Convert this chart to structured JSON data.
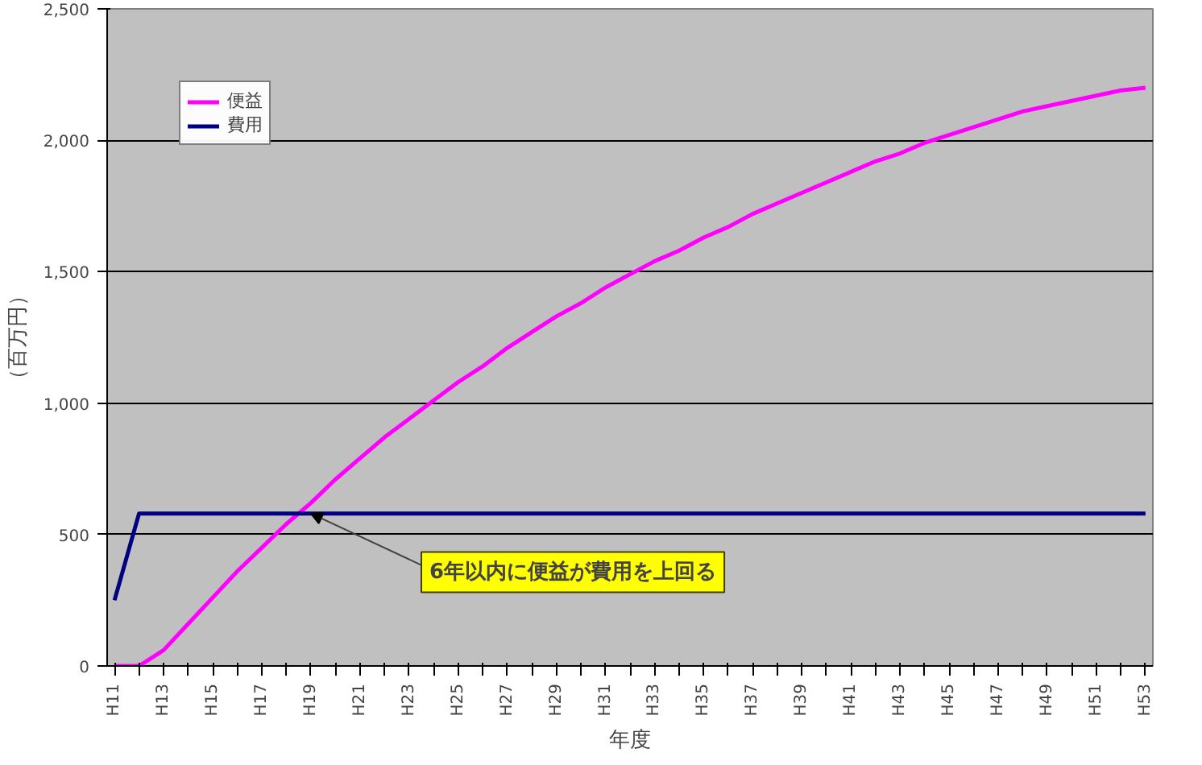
{
  "chart_data": {
    "type": "line",
    "xlabel": "年度",
    "ylabel": "（百万円）",
    "categories": [
      "H11",
      null,
      "H13",
      null,
      "H15",
      null,
      "H17",
      null,
      "H19",
      null,
      "H21",
      null,
      "H23",
      null,
      "H25",
      null,
      "H27",
      null,
      "H29",
      null,
      "H31",
      null,
      "H33",
      null,
      "H35",
      null,
      "H37",
      null,
      "H39",
      null,
      "H41",
      null,
      "H43",
      null,
      "H45",
      null,
      "H47",
      null,
      "H49",
      null,
      "H51",
      null,
      "H53"
    ],
    "series": [
      {
        "name": "便益",
        "color": "#ff00ff",
        "values": [
          0,
          0,
          60,
          160,
          260,
          360,
          450,
          540,
          620,
          710,
          790,
          870,
          940,
          1010,
          1080,
          1140,
          1210,
          1270,
          1330,
          1380,
          1440,
          1490,
          1540,
          1580,
          1630,
          1670,
          1720,
          1760,
          1800,
          1840,
          1880,
          1920,
          1950,
          1990,
          2020,
          2050,
          2080,
          2110,
          2130,
          2150,
          2170,
          2190,
          2200
        ]
      },
      {
        "name": "費用",
        "color": "#000080",
        "values": [
          250,
          580,
          580,
          580,
          580,
          580,
          580,
          580,
          580,
          580,
          580,
          580,
          580,
          580,
          580,
          580,
          580,
          580,
          580,
          580,
          580,
          580,
          580,
          580,
          580,
          580,
          580,
          580,
          580,
          580,
          580,
          580,
          580,
          580,
          580,
          580,
          580,
          580,
          580,
          580,
          580,
          580,
          580
        ]
      }
    ],
    "ylim": [
      0,
      2500
    ],
    "yticks": [
      0,
      500,
      {
        "value": 1000,
        "label": "1,000"
      },
      {
        "value": 1500,
        "label": "1,500"
      },
      {
        "value": 2000,
        "label": "2,000"
      },
      {
        "value": 2500,
        "label": "2,500"
      }
    ],
    "grid": "y",
    "legend": "top left",
    "line_style": "solid",
    "annotations": [
      {
        "text": "6年以内に便益が費用を上回る",
        "x": "H19",
        "y": 580
      }
    ]
  }
}
